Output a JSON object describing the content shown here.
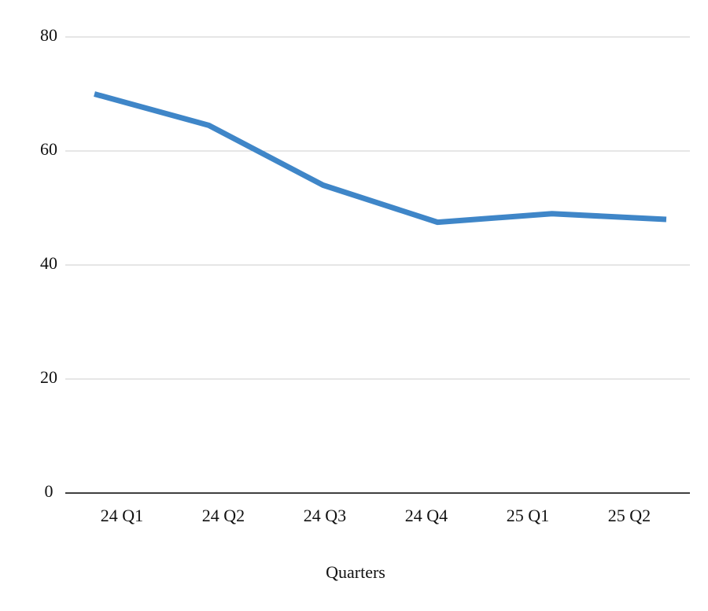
{
  "chart_data": {
    "type": "line",
    "x_label": "Quarters",
    "categories": [
      "24 Q1",
      "24 Q2",
      "24 Q3",
      "24 Q4",
      "25 Q1",
      "25 Q2"
    ],
    "series": [
      {
        "color": "#3f86c8",
        "values": [
          70,
          64.5,
          54,
          47.5,
          49,
          48
        ]
      }
    ],
    "ylim": [
      0,
      80
    ],
    "yticks": [
      0,
      20,
      40,
      60,
      80
    ],
    "grid": true
  }
}
